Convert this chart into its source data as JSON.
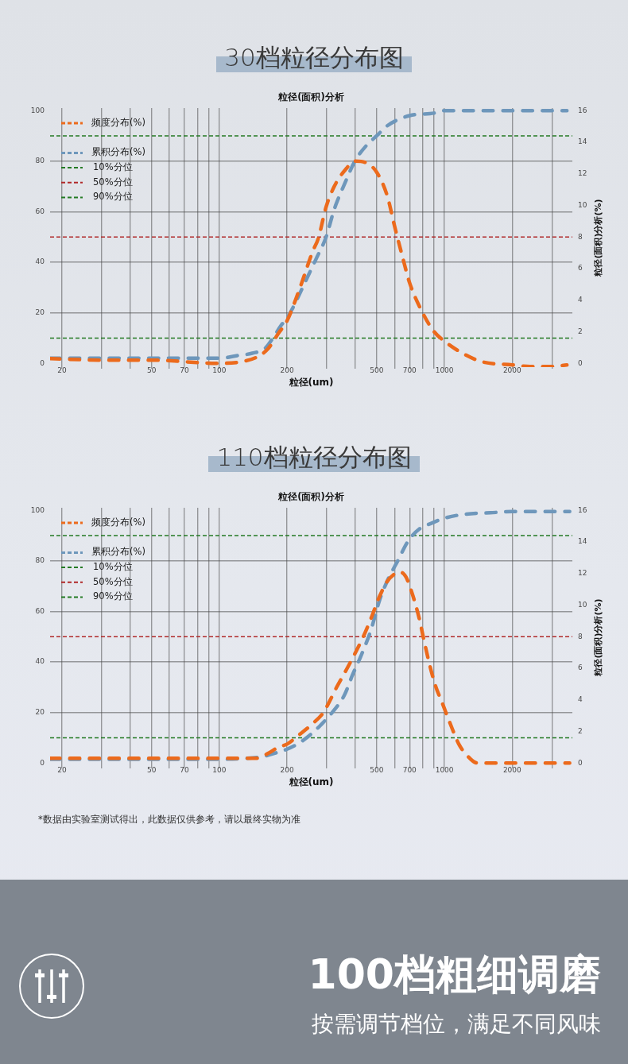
{
  "chart_data": [
    {
      "type": "line",
      "title": "30档粒径分布图",
      "subtitle": "粒径(面积)分析",
      "xlabel": "粒径(um)",
      "y2label": "粒径(面积)分析(%)",
      "log": "x",
      "xlim": [
        17.7,
        3700
      ],
      "xticks": [
        20,
        {
          "value": 30,
          "label": null
        },
        {
          "value": 40,
          "label": null
        },
        50,
        {
          "value": 60,
          "label": null
        },
        70,
        {
          "value": 80,
          "label": null
        },
        {
          "value": 90,
          "label": null
        },
        100,
        200,
        {
          "value": 300,
          "label": null
        },
        {
          "value": 400,
          "label": null
        },
        500,
        {
          "value": 600,
          "label": null
        },
        700,
        {
          "value": 800,
          "label": null
        },
        {
          "value": 900,
          "label": null
        },
        1000,
        2000,
        {
          "value": 3000,
          "label": null
        }
      ],
      "ylim": [
        -1.5,
        101
      ],
      "yticks": [
        0,
        20,
        40,
        60,
        80,
        100
      ],
      "y2lim": [
        -0.24,
        16.16
      ],
      "y2ticks": [
        0,
        2,
        4,
        6,
        8,
        10,
        12,
        14,
        16
      ],
      "grid": true,
      "legend": "top left",
      "marker": "none",
      "line_style": "dashed",
      "ref_lines": [
        {
          "axis": "y",
          "value": 10,
          "label": "10%分位",
          "color": "#237a23",
          "line_style": "dashed"
        },
        {
          "axis": "y",
          "value": 50,
          "label": "50%分位",
          "color": "#b02828",
          "line_style": "dashed"
        },
        {
          "axis": "y",
          "value": 90,
          "label": "90%分位",
          "color": "#237a23",
          "line_style": "dashed"
        }
      ],
      "series": [
        {
          "name": "频度分布(%)",
          "color": "#ec6a1c",
          "axis": "y2",
          "x": [
            17.7,
            31,
            50,
            100,
            125,
            147,
            164,
            183,
            200,
            227,
            260,
            275,
            298,
            324,
            360,
            403,
            448,
            500,
            557,
            600,
            655,
            700,
            800,
            900,
            1000,
            1216,
            1471,
            2000,
            2400,
            3000,
            3500
          ],
          "values": [
            0.3,
            0.2,
            0.2,
            0,
            0.1,
            0.4,
            0.9,
            1.9,
            2.7,
            4.7,
            7.1,
            7.9,
            9.9,
            11.2,
            12.2,
            12.8,
            12.7,
            12.1,
            10.6,
            8.7,
            6.6,
            5.1,
            3.2,
            2.0,
            1.4,
            0.6,
            0.1,
            -0.1,
            -0.2,
            -0.2,
            -0.1
          ]
        },
        {
          "name": "累积分布(%)",
          "color": "#6e97bb",
          "x": [
            17.7,
            50,
            100,
            119,
            140,
            160,
            173,
            188,
            200,
            215,
            240,
            268,
            298,
            324,
            360,
            400,
            448,
            500,
            557,
            700,
            900,
            1000,
            2000,
            3500
          ],
          "values": [
            2,
            2,
            2,
            3,
            4,
            6,
            10,
            15,
            18,
            23,
            32,
            41,
            50,
            61,
            71,
            80,
            86,
            90,
            94,
            98,
            99,
            100,
            100,
            100
          ]
        }
      ]
    },
    {
      "type": "line",
      "title": "110档粒径分布图",
      "subtitle": "粒径(面积)分析",
      "xlabel": "粒径(um)",
      "y2label": "粒径(面积)分析(%)",
      "log": "x",
      "xlim": [
        17.7,
        3700
      ],
      "xticks": [
        20,
        {
          "value": 30,
          "label": null
        },
        {
          "value": 40,
          "label": null
        },
        50,
        {
          "value": 60,
          "label": null
        },
        70,
        {
          "value": 80,
          "label": null
        },
        {
          "value": 90,
          "label": null
        },
        100,
        200,
        {
          "value": 300,
          "label": null
        },
        {
          "value": 400,
          "label": null
        },
        500,
        {
          "value": 600,
          "label": null
        },
        700,
        {
          "value": 800,
          "label": null
        },
        {
          "value": 900,
          "label": null
        },
        1000,
        2000,
        {
          "value": 3000,
          "label": null
        }
      ],
      "ylim": [
        -1.5,
        101
      ],
      "yticks": [
        0,
        20,
        40,
        60,
        80,
        100
      ],
      "y2lim": [
        -0.24,
        16.16
      ],
      "y2ticks": [
        0,
        2,
        4,
        6,
        8,
        10,
        12,
        14,
        16
      ],
      "grid": true,
      "legend": "top left",
      "marker": "none",
      "line_style": "dashed",
      "ref_lines": [
        {
          "axis": "y",
          "value": 10,
          "label": "10%分位",
          "color": "#237a23",
          "line_style": "dashed"
        },
        {
          "axis": "y",
          "value": 50,
          "label": "50%分位",
          "color": "#b02828",
          "line_style": "dashed"
        },
        {
          "axis": "y",
          "value": 90,
          "label": "90%分位",
          "color": "#237a23",
          "line_style": "dashed"
        }
      ],
      "series": [
        {
          "name": "频度分布(%)",
          "color": "#ec6a1c",
          "axis": "y2",
          "x": [
            17.7,
            100,
            140,
            147,
            164,
            183,
            200,
            227,
            260,
            290,
            306,
            332,
            360,
            386,
            436,
            473,
            513,
            557,
            604,
            629,
            673,
            720,
            771,
            813,
            860,
            907,
            984,
            1067,
            1158,
            1256,
            1400,
            1471,
            2000,
            3600
          ],
          "values": [
            0.3,
            0.3,
            0.3,
            0.3,
            0.6,
            1.0,
            1.2,
            1.8,
            2.5,
            3.2,
            3.8,
            4.8,
            5.7,
            6.5,
            8.0,
            9.2,
            10.5,
            11.5,
            12.0,
            12.1,
            11.8,
            10.7,
            9.2,
            7.7,
            6.2,
            5.0,
            3.7,
            2.4,
            1.2,
            0.5,
            0,
            0,
            0,
            0
          ]
        },
        {
          "name": "累积分布(%)",
          "color": "#6e97bb",
          "x": [
            17.7,
            100,
            140,
            155,
            178,
            200,
            227,
            260,
            282,
            324,
            360,
            391,
            424,
            473,
            513,
            557,
            620,
            692,
            771,
            882,
            1011,
            1250,
            1595,
            2000,
            3600
          ],
          "values": [
            1.5,
            1.5,
            2,
            2.5,
            4,
            5.5,
            8,
            12,
            15,
            21,
            27,
            35,
            42,
            53,
            64,
            72,
            80,
            88,
            92.5,
            95,
            97,
            98.5,
            99,
            99.5,
            99.5
          ]
        }
      ],
      "annotations": [
        "*数据由实验室测试得出，此数据仅供参考，请以最终实物为准"
      ]
    },
    {
      "type": "other",
      "title": "100档粗细调磨",
      "subtitle": "按需调节档位，满足不同风味"
    }
  ]
}
